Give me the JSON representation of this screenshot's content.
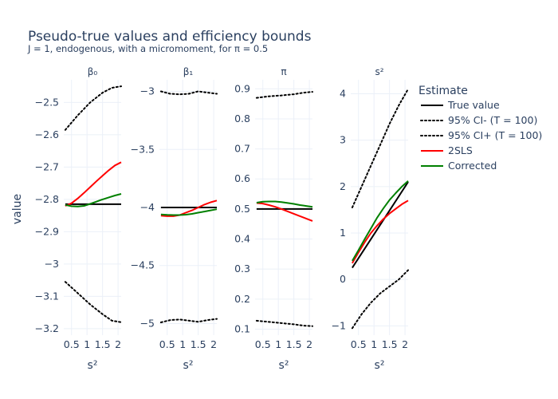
{
  "chart_data": {
    "type": "line",
    "title": "Pseudo-true values and efficiency bounds",
    "subtitle": "J = 1, endogenous, with a micromoment,  for π = 0.5",
    "ylabel": "value",
    "legend": {
      "title": "Estimate",
      "placement": "right",
      "entries": [
        {
          "name": "True value",
          "color": "#000000",
          "dash": "solid"
        },
        {
          "name": "95% CI- (T = 100)",
          "color": "#000000",
          "dash": "dot"
        },
        {
          "name": "95% CI+ (T = 100)",
          "color": "#000000",
          "dash": "dot"
        },
        {
          "name": "2SLS",
          "color": "#ff0000",
          "dash": "solid"
        },
        {
          "name": "Corrected",
          "color": "#008000",
          "dash": "solid"
        }
      ]
    },
    "panels": [
      {
        "title": "β₀",
        "xlabel": "s²",
        "xlim": [
          0.25,
          2.1
        ],
        "xticks": [
          {
            "v": 0.5,
            "label": "0.5"
          },
          {
            "v": 1,
            "label": "1"
          },
          {
            "v": 1.5,
            "label": "1.5"
          },
          {
            "v": 2,
            "label": "2"
          }
        ],
        "ylim": [
          -3.22,
          -2.43
        ],
        "yticks": [
          {
            "v": -2.5,
            "label": "−2.5"
          },
          {
            "v": -2.6,
            "label": "−2.6"
          },
          {
            "v": -2.7,
            "label": "−2.7"
          },
          {
            "v": -2.8,
            "label": "−2.8"
          },
          {
            "v": -2.9,
            "label": "−2.9"
          },
          {
            "v": -3.0,
            "label": "−3"
          },
          {
            "v": -3.1,
            "label": "−3.1"
          },
          {
            "v": -3.2,
            "label": "−3.2"
          }
        ],
        "series": [
          {
            "name": "True value",
            "x": [
              0.3,
              2.1
            ],
            "y": [
              -2.815,
              -2.815
            ]
          },
          {
            "name": "95% CI- (T = 100)",
            "x": [
              0.3,
              0.7,
              1.1,
              1.5,
              1.8,
              2.1
            ],
            "y": [
              -3.055,
              -3.09,
              -3.125,
              -3.155,
              -3.175,
              -3.18
            ]
          },
          {
            "name": "95% CI+ (T = 100)",
            "x": [
              0.3,
              0.7,
              1.1,
              1.5,
              1.8,
              2.1
            ],
            "y": [
              -2.585,
              -2.54,
              -2.5,
              -2.47,
              -2.455,
              -2.45
            ]
          },
          {
            "name": "2SLS",
            "x": [
              0.3,
              0.5,
              0.7,
              0.9,
              1.1,
              1.3,
              1.5,
              1.7,
              1.9,
              2.1
            ],
            "y": [
              -2.82,
              -2.812,
              -2.797,
              -2.78,
              -2.762,
              -2.744,
              -2.727,
              -2.71,
              -2.695,
              -2.685
            ]
          },
          {
            "name": "Corrected",
            "x": [
              0.3,
              0.5,
              0.7,
              0.9,
              1.1,
              1.3,
              1.5,
              1.7,
              1.9,
              2.1
            ],
            "y": [
              -2.817,
              -2.821,
              -2.822,
              -2.82,
              -2.814,
              -2.807,
              -2.8,
              -2.794,
              -2.788,
              -2.783
            ]
          }
        ]
      },
      {
        "title": "β₁",
        "xlabel": "s²",
        "xlim": [
          0.25,
          2.1
        ],
        "xticks": [
          {
            "v": 0.5,
            "label": "0.5"
          },
          {
            "v": 1,
            "label": "1"
          },
          {
            "v": 1.5,
            "label": "1.5"
          },
          {
            "v": 2,
            "label": "2"
          }
        ],
        "ylim": [
          -5.1,
          -2.9
        ],
        "yticks": [
          {
            "v": -3,
            "label": "−3"
          },
          {
            "v": -3.5,
            "label": "−3.5"
          },
          {
            "v": -4,
            "label": "−4"
          },
          {
            "v": -4.5,
            "label": "−4.5"
          },
          {
            "v": -5,
            "label": "−5"
          }
        ],
        "series": [
          {
            "name": "True value",
            "x": [
              0.3,
              2.1
            ],
            "y": [
              -4.0,
              -4.0
            ]
          },
          {
            "name": "95% CI- (T = 100)",
            "x": [
              0.3,
              0.6,
              0.9,
              1.2,
              1.5,
              1.8,
              2.1
            ],
            "y": [
              -4.99,
              -4.97,
              -4.965,
              -4.975,
              -4.985,
              -4.97,
              -4.96
            ]
          },
          {
            "name": "95% CI+ (T = 100)",
            "x": [
              0.3,
              0.6,
              0.9,
              1.2,
              1.5,
              1.8,
              2.1
            ],
            "y": [
              -3.0,
              -3.02,
              -3.025,
              -3.02,
              -3.0,
              -3.01,
              -3.02
            ]
          },
          {
            "name": "2SLS",
            "x": [
              0.3,
              0.5,
              0.7,
              0.9,
              1.1,
              1.3,
              1.5,
              1.7,
              1.9,
              2.1
            ],
            "y": [
              -4.07,
              -4.075,
              -4.075,
              -4.065,
              -4.045,
              -4.025,
              -4.0,
              -3.975,
              -3.955,
              -3.94
            ]
          },
          {
            "name": "Corrected",
            "x": [
              0.3,
              0.5,
              0.7,
              0.9,
              1.1,
              1.3,
              1.5,
              1.7,
              1.9,
              2.1
            ],
            "y": [
              -4.06,
              -4.063,
              -4.065,
              -4.065,
              -4.062,
              -4.055,
              -4.045,
              -4.035,
              -4.025,
              -4.015
            ]
          }
        ]
      },
      {
        "title": "π",
        "xlabel": "s²",
        "xlim": [
          0.25,
          2.1
        ],
        "xticks": [
          {
            "v": 0.5,
            "label": "0.5"
          },
          {
            "v": 1,
            "label": "1"
          },
          {
            "v": 1.5,
            "label": "1.5"
          },
          {
            "v": 2,
            "label": "2"
          }
        ],
        "ylim": [
          0.08,
          0.93
        ],
        "yticks": [
          {
            "v": 0.9,
            "label": "0.9"
          },
          {
            "v": 0.8,
            "label": "0.8"
          },
          {
            "v": 0.7,
            "label": "0.7"
          },
          {
            "v": 0.6,
            "label": "0.6"
          },
          {
            "v": 0.5,
            "label": "0.5"
          },
          {
            "v": 0.4,
            "label": "0.4"
          },
          {
            "v": 0.3,
            "label": "0.3"
          },
          {
            "v": 0.2,
            "label": "0.2"
          },
          {
            "v": 0.1,
            "label": "0.1"
          }
        ],
        "series": [
          {
            "name": "True value",
            "x": [
              0.3,
              2.1
            ],
            "y": [
              0.5,
              0.5
            ]
          },
          {
            "name": "95% CI- (T = 100)",
            "x": [
              0.3,
              0.7,
              1.1,
              1.5,
              1.8,
              2.1
            ],
            "y": [
              0.128,
              0.124,
              0.12,
              0.116,
              0.112,
              0.11
            ]
          },
          {
            "name": "95% CI+ (T = 100)",
            "x": [
              0.3,
              0.7,
              1.1,
              1.5,
              1.8,
              2.1
            ],
            "y": [
              0.87,
              0.875,
              0.878,
              0.882,
              0.887,
              0.89
            ]
          },
          {
            "name": "2SLS",
            "x": [
              0.3,
              0.5,
              0.7,
              0.9,
              1.1,
              1.3,
              1.5,
              1.7,
              1.9,
              2.1
            ],
            "y": [
              0.52,
              0.518,
              0.513,
              0.507,
              0.5,
              0.492,
              0.484,
              0.476,
              0.468,
              0.46
            ]
          },
          {
            "name": "Corrected",
            "x": [
              0.3,
              0.5,
              0.7,
              0.9,
              1.1,
              1.3,
              1.5,
              1.7,
              1.9,
              2.1
            ],
            "y": [
              0.521,
              0.524,
              0.525,
              0.525,
              0.523,
              0.52,
              0.517,
              0.513,
              0.51,
              0.507
            ]
          }
        ]
      },
      {
        "title": "s²",
        "xlabel": "s²",
        "xlim": [
          0.25,
          2.1
        ],
        "xticks": [
          {
            "v": 0.5,
            "label": "0.5"
          },
          {
            "v": 1,
            "label": "1"
          },
          {
            "v": 1.5,
            "label": "1.5"
          },
          {
            "v": 2,
            "label": "2"
          }
        ],
        "ylim": [
          -1.2,
          4.3
        ],
        "yticks": [
          {
            "v": 4,
            "label": "4"
          },
          {
            "v": 3,
            "label": "3"
          },
          {
            "v": 2,
            "label": "2"
          },
          {
            "v": 1,
            "label": "1"
          },
          {
            "v": 0,
            "label": "0"
          },
          {
            "v": -1,
            "label": "−1"
          }
        ],
        "series": [
          {
            "name": "True value",
            "x": [
              0.3,
              2.1
            ],
            "y": [
              0.25,
              2.1
            ]
          },
          {
            "name": "95% CI- (T = 100)",
            "x": [
              0.3,
              0.6,
              0.9,
              1.2,
              1.5,
              1.8,
              2.1
            ],
            "y": [
              -1.05,
              -0.75,
              -0.5,
              -0.3,
              -0.15,
              0.0,
              0.2
            ]
          },
          {
            "name": "95% CI+ (T = 100)",
            "x": [
              0.3,
              0.6,
              0.9,
              1.2,
              1.5,
              1.8,
              2.1
            ],
            "y": [
              1.55,
              2.0,
              2.45,
              2.9,
              3.35,
              3.75,
              4.1
            ]
          },
          {
            "name": "2SLS",
            "x": [
              0.3,
              0.5,
              0.7,
              0.9,
              1.1,
              1.3,
              1.5,
              1.7,
              1.9,
              2.1
            ],
            "y": [
              0.35,
              0.58,
              0.8,
              1.0,
              1.16,
              1.3,
              1.42,
              1.52,
              1.62,
              1.7
            ]
          },
          {
            "name": "Corrected",
            "x": [
              0.3,
              0.5,
              0.7,
              0.9,
              1.1,
              1.3,
              1.5,
              1.7,
              1.9,
              2.1
            ],
            "y": [
              0.4,
              0.63,
              0.87,
              1.1,
              1.33,
              1.53,
              1.71,
              1.86,
              2.0,
              2.12
            ]
          }
        ]
      }
    ]
  }
}
